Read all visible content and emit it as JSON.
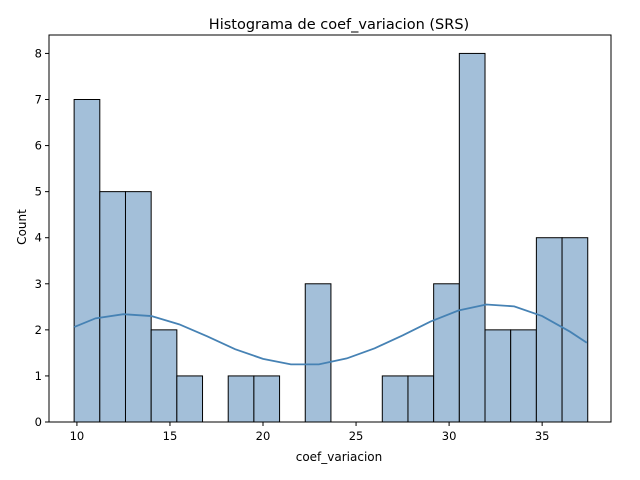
{
  "chart_data": {
    "type": "bar",
    "title": "Histograma de coef_variacion (SRS)",
    "xlabel": "coef_variacion",
    "ylabel": "Count",
    "xlim": [
      8.5,
      38.7
    ],
    "ylim": [
      0,
      8.4
    ],
    "xticks": [
      "10",
      "15",
      "20",
      "25",
      "30",
      "35"
    ],
    "yticks": [
      "0",
      "1",
      "2",
      "3",
      "4",
      "5",
      "6",
      "7",
      "8"
    ],
    "grid": false,
    "bins": {
      "start": 9.85,
      "width": 1.38,
      "counts": [
        7,
        5,
        5,
        2,
        1,
        0,
        1,
        1,
        0,
        3,
        0,
        0,
        1,
        1,
        3,
        8,
        2,
        2,
        4,
        4
      ]
    },
    "kde": {
      "x": [
        9.85,
        11.0,
        12.5,
        14.0,
        15.5,
        17.0,
        18.5,
        20.0,
        21.5,
        23.0,
        24.5,
        26.0,
        27.5,
        29.0,
        30.5,
        32.0,
        33.5,
        35.0,
        36.5,
        37.4
      ],
      "y": [
        2.06,
        2.25,
        2.34,
        2.3,
        2.12,
        1.86,
        1.58,
        1.37,
        1.25,
        1.25,
        1.38,
        1.6,
        1.88,
        2.18,
        2.42,
        2.55,
        2.51,
        2.3,
        1.96,
        1.72
      ]
    },
    "colors": {
      "bar_fill": "#a3bfd9",
      "bar_edge": "#000000",
      "kde_line": "#4682b4"
    }
  }
}
